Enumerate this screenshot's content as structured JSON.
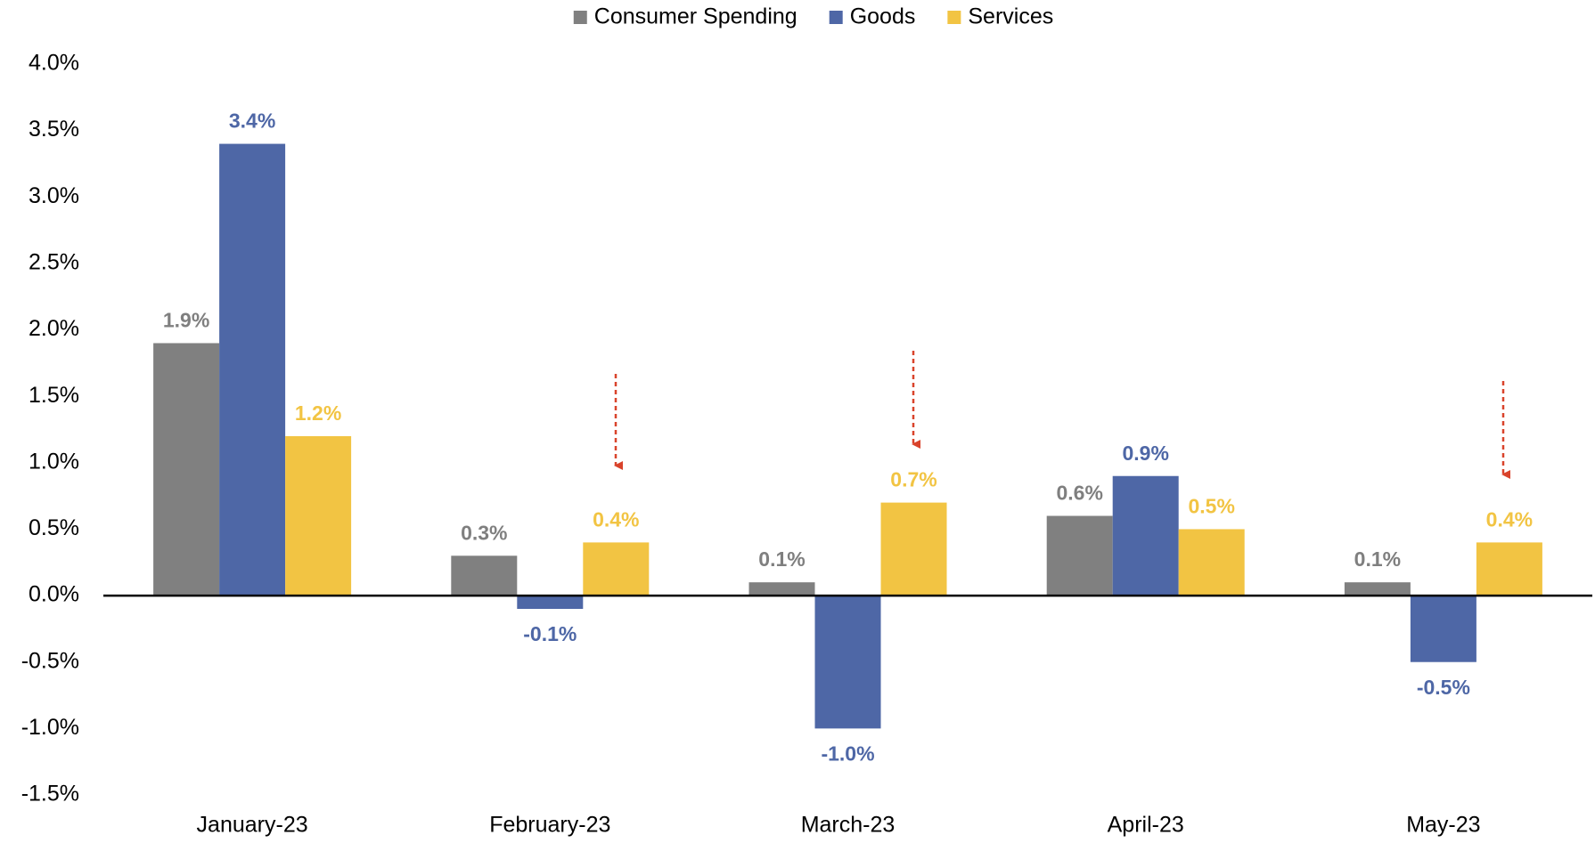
{
  "chart_data": {
    "type": "bar",
    "categories": [
      "January-23",
      "February-23",
      "March-23",
      "April-23",
      "May-23"
    ],
    "series": [
      {
        "name": "Consumer Spending",
        "color": "#808080",
        "values": [
          1.9,
          0.3,
          0.1,
          0.6,
          0.1
        ],
        "value_labels": [
          "1.9%",
          "0.3%",
          "0.1%",
          "0.6%",
          "0.1%"
        ]
      },
      {
        "name": "Goods",
        "color": "#4e67a6",
        "values": [
          3.4,
          -0.1,
          -1.0,
          0.9,
          -0.5
        ],
        "value_labels": [
          "3.4%",
          "-0.1%",
          "-1.0%",
          "0.9%",
          "-0.5%"
        ]
      },
      {
        "name": "Services",
        "color": "#f2c443",
        "values": [
          1.2,
          0.4,
          0.7,
          0.5,
          0.4
        ],
        "value_labels": [
          "1.2%",
          "0.4%",
          "0.7%",
          "0.5%",
          "0.4%"
        ]
      }
    ],
    "ylim": [
      -1.5,
      4.0
    ],
    "yticks": [
      {
        "value": -1.5,
        "label": "-1.5%"
      },
      {
        "value": -1.0,
        "label": "-1.0%"
      },
      {
        "value": -0.5,
        "label": "-0.5%"
      },
      {
        "value": 0,
        "label": "0.0%"
      },
      {
        "value": 0.5,
        "label": "0.5%"
      },
      {
        "value": 1.0,
        "label": "1.0%"
      },
      {
        "value": 1.5,
        "label": "1.5%"
      },
      {
        "value": 2.0,
        "label": "2.0%"
      },
      {
        "value": 2.5,
        "label": "2.5%"
      },
      {
        "value": 3.0,
        "label": "3.0%"
      },
      {
        "value": 3.5,
        "label": "3.5%"
      },
      {
        "value": 4.0,
        "label": "4.0%"
      }
    ],
    "grid": false,
    "legend": "top"
  }
}
